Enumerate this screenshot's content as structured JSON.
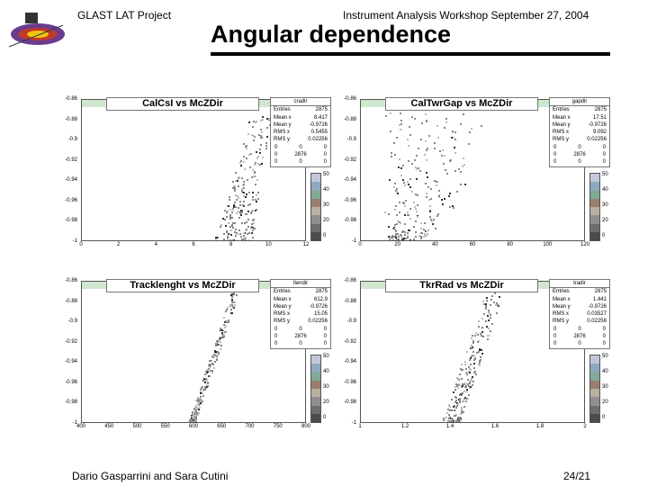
{
  "header": {
    "project": "GLAST LAT Project",
    "event": "Instrument Analysis Workshop  September  27, 2004",
    "title": "Angular dependence"
  },
  "footer": {
    "authors": "Dario Gasparrini and Sara Cutini",
    "page": "24/21"
  },
  "colors": {
    "title_bar": "#cfe6cf",
    "palette": [
      "#4b4b4b",
      "#6d6d6d",
      "#8f8f8f",
      "#b8b0a0",
      "#9a7f6c",
      "#7faa96",
      "#8fa8c0",
      "#c0c8d8"
    ]
  },
  "chart_data": [
    {
      "type": "scatter",
      "title": "CalCsI vs McZDir",
      "stats": {
        "name": "cradir",
        "rows": [
          [
            "Entries",
            "2875"
          ],
          [
            "Mean x",
            "8.417"
          ],
          [
            "Mean y",
            "-0.9726"
          ],
          [
            "RMS x",
            "0.5455"
          ],
          [
            "RMS y",
            "0.02256"
          ]
        ],
        "grid": [
          [
            "0",
            "0",
            "0"
          ],
          [
            "0",
            "2876",
            "0"
          ],
          [
            "0",
            "0",
            "0"
          ]
        ]
      },
      "xticks": [
        "0",
        "2",
        "4",
        "6",
        "8",
        "10",
        "12"
      ],
      "yticks": [
        "-0.86",
        "-0.88",
        "-0.9",
        "-0.92",
        "-0.94",
        "-0.96",
        "-0.98",
        "-1"
      ],
      "xlim": [
        0,
        12
      ],
      "ylim": [
        -1,
        -0.86
      ],
      "colorbar": [
        "50",
        "40",
        "30",
        "20",
        "0"
      ]
    },
    {
      "type": "scatter",
      "title": "CalTwrGap vs McZDir",
      "stats": {
        "name": "gapdir",
        "rows": [
          [
            "Entries",
            "2875"
          ],
          [
            "Mean x",
            "17.51"
          ],
          [
            "Mean y",
            "-0.9726"
          ],
          [
            "RMS x",
            "9.092"
          ],
          [
            "RMS y",
            "0.02256"
          ]
        ],
        "grid": [
          [
            "0",
            "0",
            "0"
          ],
          [
            "0",
            "2876",
            "0"
          ],
          [
            "0",
            "0",
            "0"
          ]
        ]
      },
      "xticks": [
        "0",
        "20",
        "40",
        "60",
        "80",
        "100",
        "120"
      ],
      "yticks": [
        "-0.86",
        "-0.88",
        "-0.9",
        "-0.92",
        "-0.94",
        "-0.96",
        "-0.98",
        "-1"
      ],
      "xlim": [
        0,
        120
      ],
      "ylim": [
        -1,
        -0.86
      ],
      "colorbar": [
        "50",
        "40",
        "30",
        "20",
        "0"
      ]
    },
    {
      "type": "scatter",
      "title": "Tracklenght vs McZDir",
      "stats": {
        "name": "tlendir",
        "rows": [
          [
            "Entries",
            "2875"
          ],
          [
            "Mean x",
            "612.9"
          ],
          [
            "Mean y",
            "-0.9726"
          ],
          [
            "RMS x",
            "15.05"
          ],
          [
            "RMS y",
            "0.02256"
          ]
        ],
        "grid": [
          [
            "0",
            "0",
            "0"
          ],
          [
            "0",
            "2876",
            "0"
          ],
          [
            "0",
            "0",
            "0"
          ]
        ]
      },
      "xticks": [
        "400",
        "450",
        "500",
        "550",
        "600",
        "650",
        "700",
        "750",
        "800"
      ],
      "yticks": [
        "-0.86",
        "-0.88",
        "-0.9",
        "-0.92",
        "-0.94",
        "-0.96",
        "-0.98",
        "-1"
      ],
      "xlim": [
        400,
        800
      ],
      "ylim": [
        -1,
        -0.86
      ],
      "colorbar": [
        "50",
        "40",
        "30",
        "20",
        "0"
      ]
    },
    {
      "type": "scatter",
      "title": "TkrRad vs McZDir",
      "stats": {
        "name": "tradir",
        "rows": [
          [
            "Entries",
            "2875"
          ],
          [
            "Mean x",
            "1.441"
          ],
          [
            "Mean y",
            "-0.9726"
          ],
          [
            "RMS x",
            "0.03527"
          ],
          [
            "RMS y",
            "0.02256"
          ]
        ],
        "grid": [
          [
            "0",
            "0",
            "0"
          ],
          [
            "0",
            "2876",
            "0"
          ],
          [
            "0",
            "0",
            "0"
          ]
        ]
      },
      "xticks": [
        "1",
        "1.2",
        "1.4",
        "1.6",
        "1.8",
        "2"
      ],
      "yticks": [
        "-0.86",
        "-0.88",
        "-0.9",
        "-0.92",
        "-0.94",
        "-0.96",
        "-0.98",
        "-1"
      ],
      "xlim": [
        1,
        2
      ],
      "ylim": [
        -1,
        -0.86
      ],
      "colorbar": [
        "50",
        "40",
        "30",
        "20",
        "0"
      ]
    }
  ]
}
